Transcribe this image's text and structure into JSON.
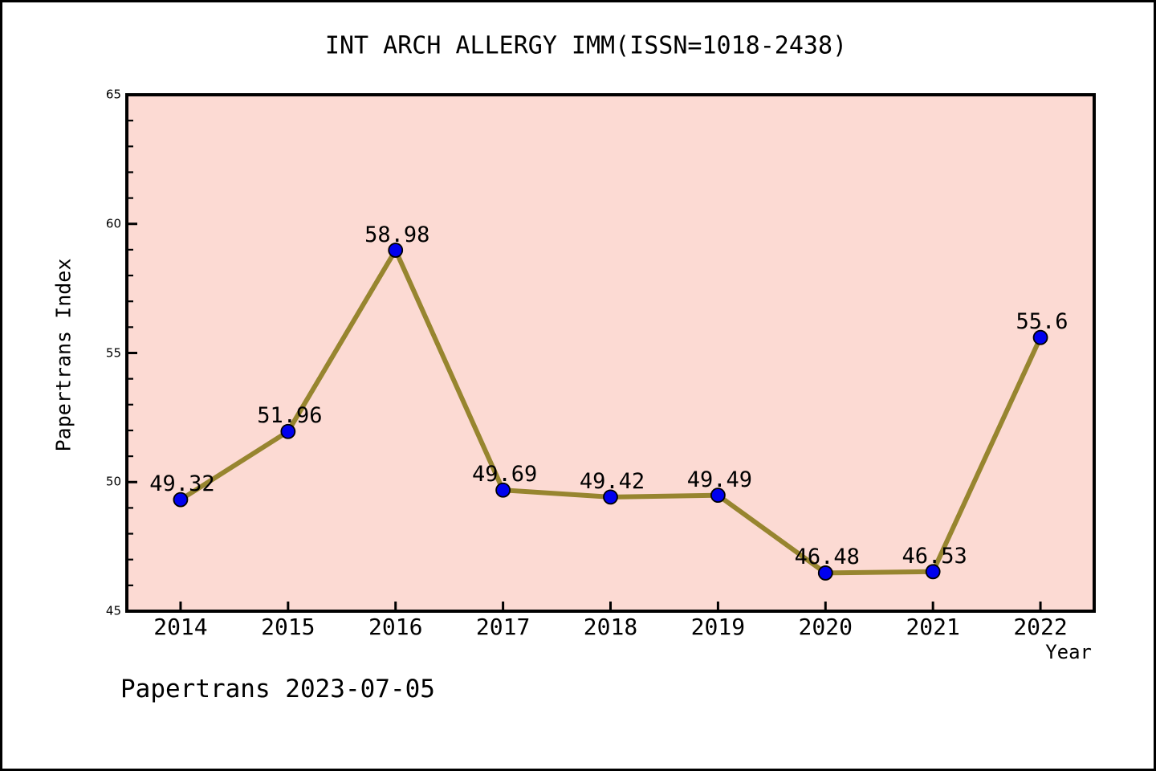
{
  "figure": {
    "background": "#FFFFFF",
    "border_color": "#000000"
  },
  "footer": {
    "text": "Papertrans 2023-07-05"
  },
  "chart_data": {
    "type": "line",
    "title": "INT ARCH ALLERGY IMM(ISSN=1018-2438)",
    "xlabel": "Year",
    "ylabel": "Papertrans Index",
    "x": [
      2014,
      2015,
      2016,
      2017,
      2018,
      2019,
      2020,
      2021,
      2022
    ],
    "values": [
      49.32,
      51.96,
      58.98,
      49.69,
      49.42,
      49.49,
      46.48,
      46.53,
      55.6
    ],
    "point_labels": [
      "49.32",
      "51.96",
      "58.98",
      "49.69",
      "49.42",
      "49.49",
      "46.48",
      "46.53",
      "55.6"
    ],
    "x_tick_labels": [
      "2014",
      "2015",
      "2016",
      "2017",
      "2018",
      "2019",
      "2020",
      "2021",
      "2022"
    ],
    "y_major_ticks": [
      45,
      50,
      55,
      60,
      65
    ],
    "y_minor_step": 1,
    "xlim": [
      2013.5,
      2022.5
    ],
    "ylim": [
      45,
      65
    ],
    "grid": false,
    "legend": null,
    "colors": {
      "line": "#97852F",
      "marker_fill": "#0000EE",
      "marker_edge": "#000000",
      "plot_bg": "#FCDAD3",
      "axis": "#000000",
      "text": "#000000"
    }
  }
}
